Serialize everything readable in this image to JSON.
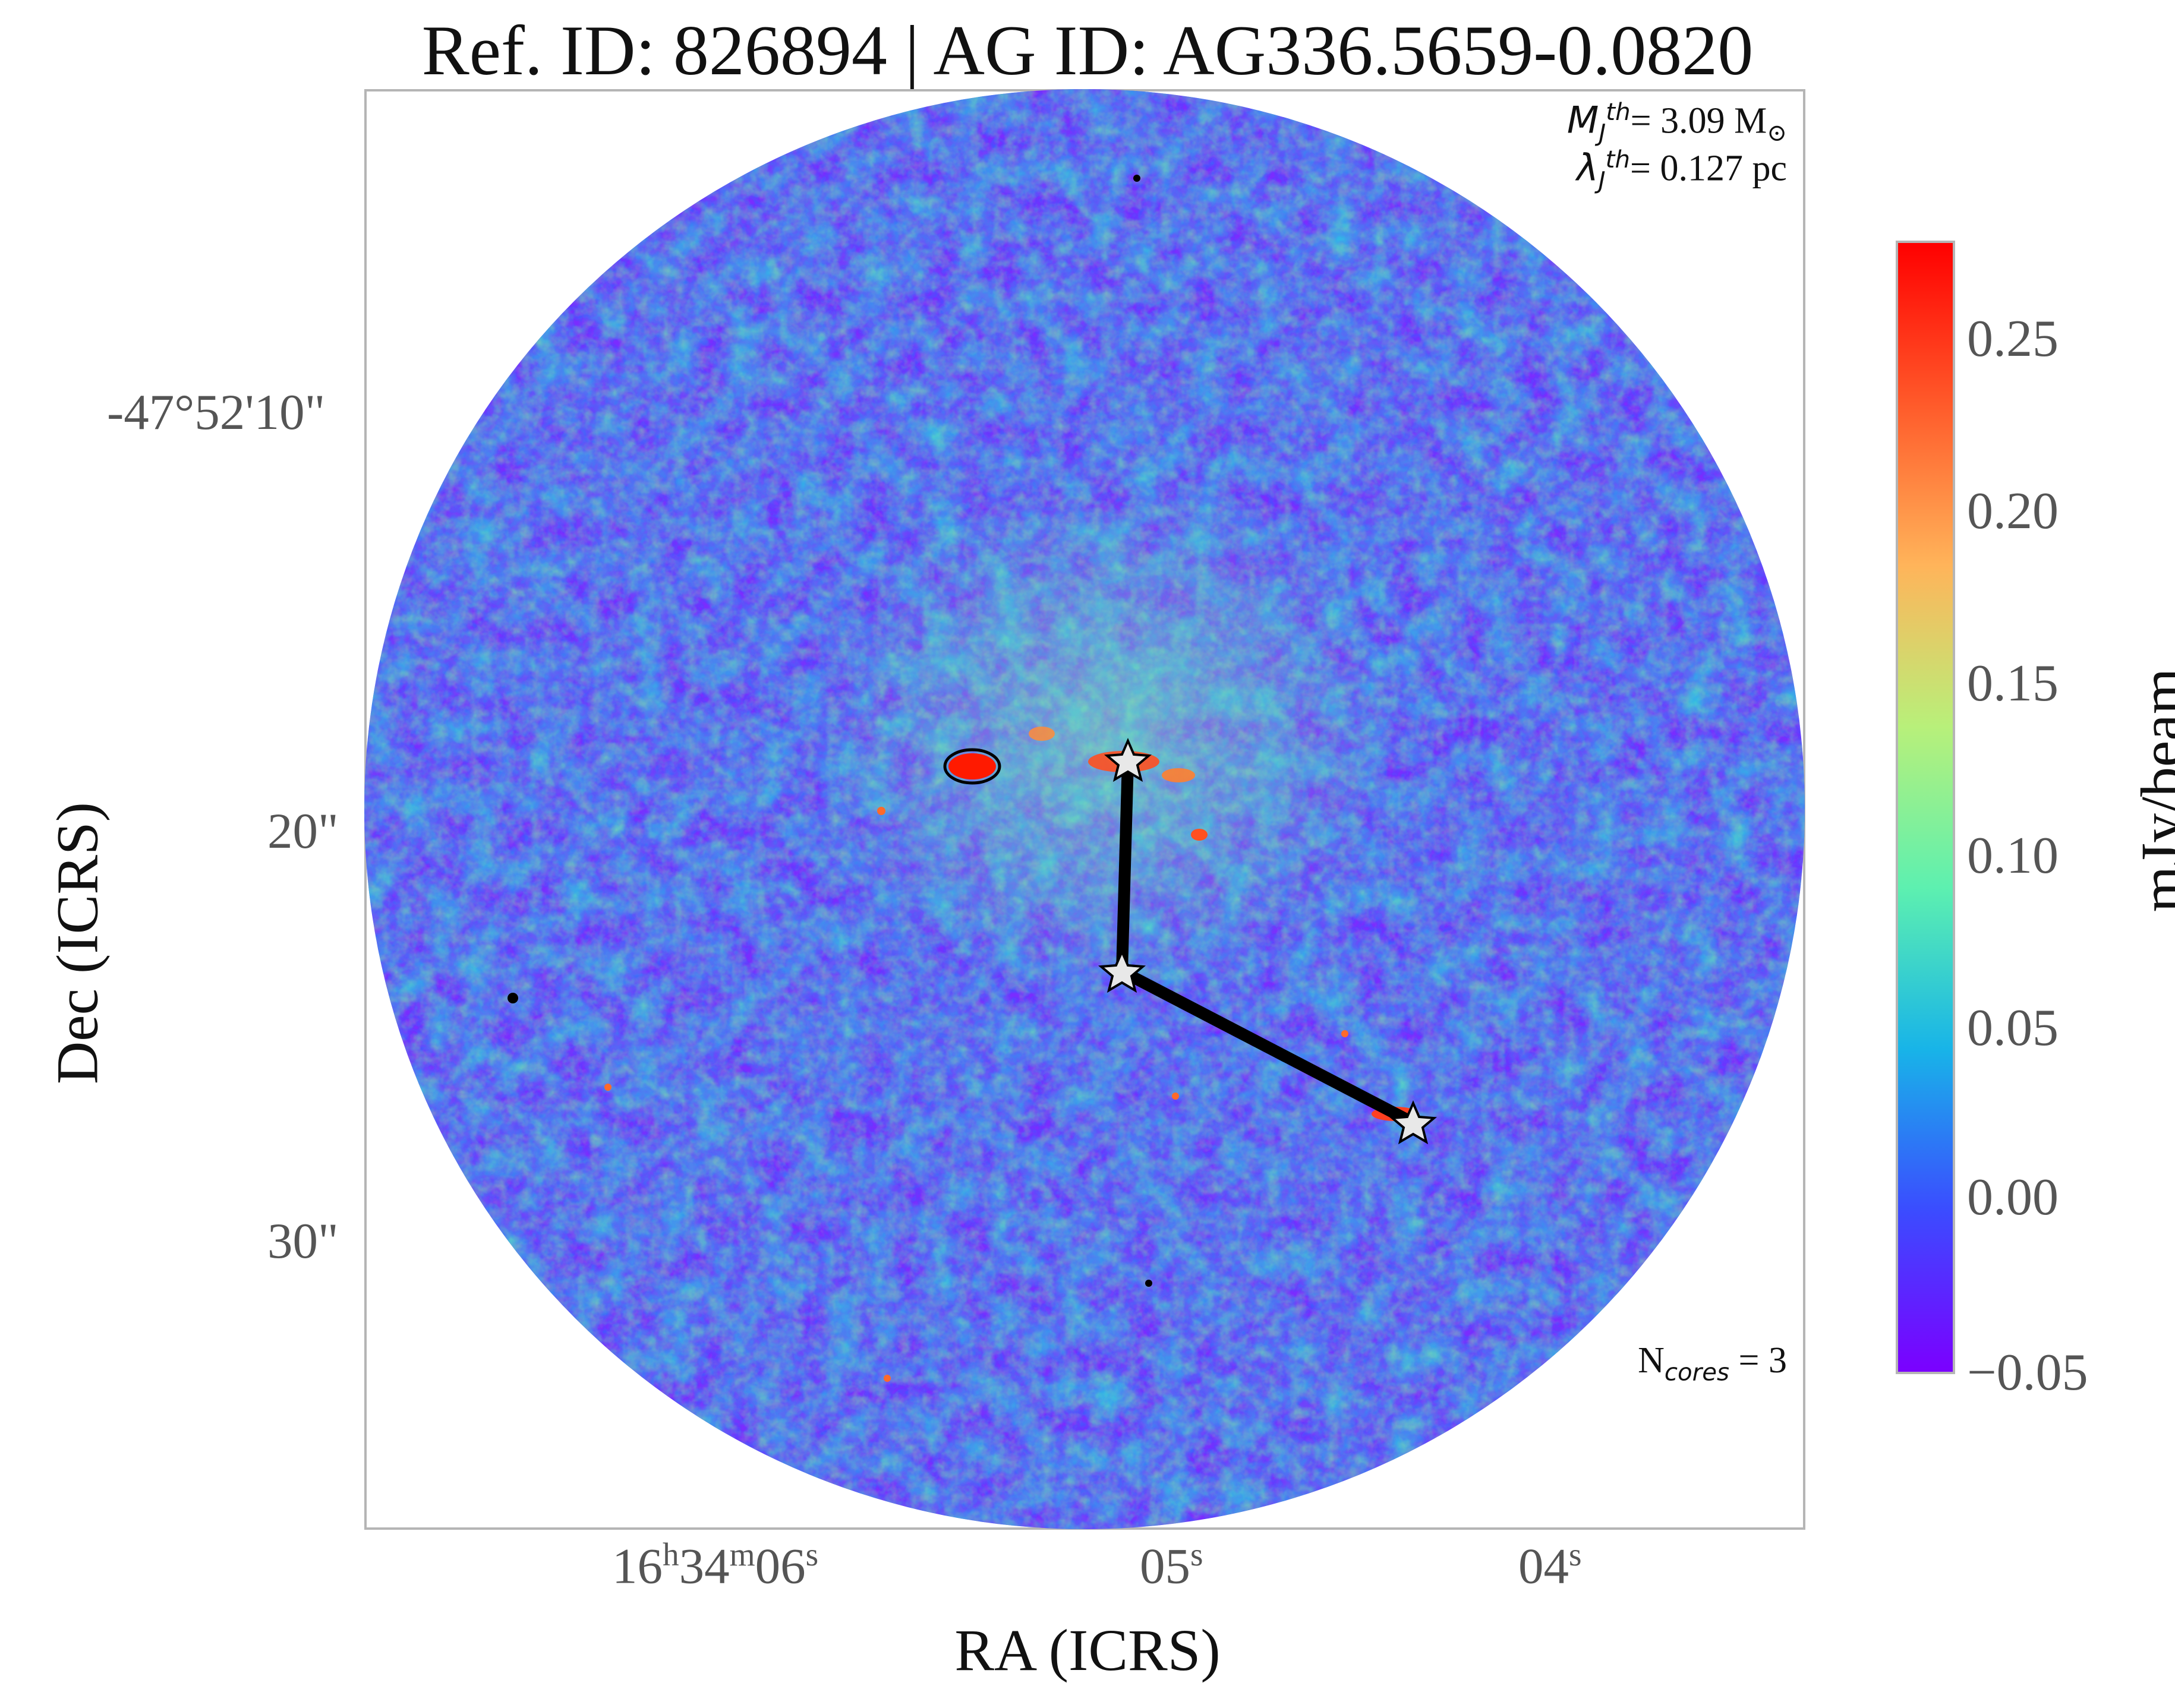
{
  "title": "Ref. ID: 826894 | AG ID: AG336.5659-0.0820",
  "annotations": {
    "mass_symbol": "M",
    "mass_sup": "th",
    "mass_sub": "J",
    "mass_value": "= 3.09 M",
    "mass_unit_symbol": "⊙",
    "lambda_symbol": "λ",
    "lambda_sup": "th",
    "lambda_sub": "J",
    "lambda_value": "= 0.127 pc",
    "cores_prefix": "N",
    "cores_sub": "cores",
    "cores_value": " = 3"
  },
  "axes": {
    "xlabel": "RA (ICRS)",
    "ylabel": "Dec (ICRS)",
    "x_ticks": [
      {
        "label_h": "16",
        "sup_h": "h",
        "label_m": "34",
        "sup_m": "m",
        "label_s": "06",
        "sup_s": "s"
      },
      {
        "label_s": "05",
        "sup_s": "s"
      },
      {
        "label_s": "04",
        "sup_s": "s"
      }
    ],
    "y_ticks": [
      "-47°52'10\"",
      "20\"",
      "30\""
    ]
  },
  "colorbar": {
    "label": "mJy/beam",
    "ticks": [
      "0.25",
      "0.20",
      "0.15",
      "0.10",
      "0.05",
      "0.00",
      "−0.05"
    ],
    "min": -0.05,
    "max": 0.277,
    "colors": [
      "#7b00ff",
      "#3b4cff",
      "#18b4e8",
      "#5df0b0",
      "#b8f07a",
      "#ffb45a",
      "#ff5a2a",
      "#ff0000"
    ]
  },
  "map": {
    "background_color": "#7a2cff",
    "core_line_color": "#000000",
    "star_fill": "#e8e8e8",
    "n_cores": 3
  }
}
